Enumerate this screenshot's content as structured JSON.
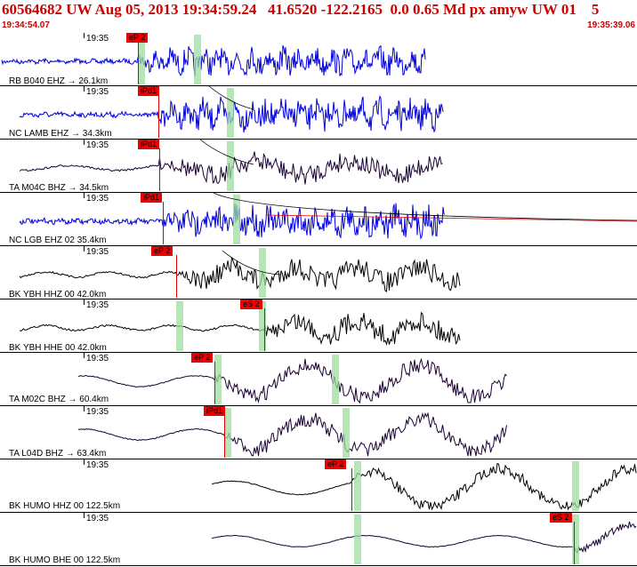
{
  "header": {
    "title": "60564682 UW Aug 05, 2013 19:34:59.24   41.6520 -122.2165  0.0 0.65 Md px amyw UW 01    5",
    "start_time": "19:34:54.07",
    "end_time": "19:35:39.06"
  },
  "colors": {
    "accent": "#cc0000",
    "blue_trace": "#0000dd",
    "dark_trace": "#1a0033",
    "pick_flag": "#ee0000",
    "band": "#9fdca0"
  },
  "traces": [
    {
      "tick": "19:35",
      "label": "RB B040 EHZ → 26.1km",
      "color": "#0000dd",
      "pick": "eP 2"
    },
    {
      "tick": "19:35",
      "label": "NC LAMB EHZ → 34.3km",
      "color": "#0000dd",
      "pick": "iPd1"
    },
    {
      "tick": "19:35",
      "label": "TA M04C BHZ → 34.5km",
      "color": "#1a0033",
      "pick": "iPd1"
    },
    {
      "tick": "19:35",
      "label": "NC LGB EHZ 02 35.4km",
      "color": "#0000dd",
      "pick": "iPd1"
    },
    {
      "tick": "19:35",
      "label": "BK YBH HHZ 00 42.0km",
      "color": "#000000",
      "pick": "eP 2"
    },
    {
      "tick": "19:35",
      "label": "BK YBH HHE 00 42.0km",
      "color": "#000000",
      "pick": "eS 2"
    },
    {
      "tick": "19:35",
      "label": "TA M02C BHZ → 60.4km",
      "color": "#1a0033",
      "pick": "eP 2"
    },
    {
      "tick": "19:35",
      "label": "TA L04D BHZ → 63.4km",
      "color": "#1a0033",
      "pick": "iPd1"
    },
    {
      "tick": "19:35",
      "label": "BK HUMO HHZ 00 122.5km",
      "color": "#000000",
      "pick": "eP 2"
    },
    {
      "tick": "19:35",
      "label": "BK HUMO BHE 00 122.5km",
      "color": "#1a0033",
      "pick": "eS 2"
    }
  ]
}
